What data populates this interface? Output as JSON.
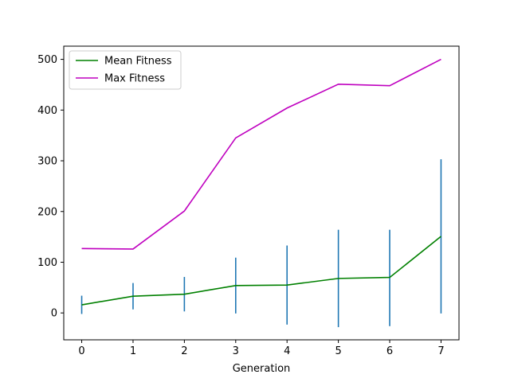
{
  "chart_data": {
    "type": "line",
    "title": "",
    "xlabel": "Generation",
    "ylabel": "",
    "x": [
      0,
      1,
      2,
      3,
      4,
      5,
      6,
      7
    ],
    "xlim": [
      -0.35,
      7.35
    ],
    "ylim": [
      -53,
      526
    ],
    "xticks": [
      0,
      1,
      2,
      3,
      4,
      5,
      6,
      7
    ],
    "yticks": [
      0,
      100,
      200,
      300,
      400,
      500
    ],
    "grid": false,
    "legend_position": "upper-left",
    "series": [
      {
        "name": "Mean Fitness",
        "color": "#008000",
        "values": [
          16,
          33,
          37,
          54,
          55,
          68,
          70,
          151
        ],
        "error_bars": {
          "color": "#1f77b4",
          "low": [
            -2,
            7,
            3,
            -1,
            -23,
            -28,
            -26,
            -1
          ],
          "high": [
            34,
            59,
            71,
            109,
            133,
            164,
            164,
            303
          ]
        }
      },
      {
        "name": "Max Fitness",
        "color": "#bf00bf",
        "values": [
          127,
          126,
          201,
          345,
          404,
          451,
          448,
          500
        ]
      }
    ]
  }
}
